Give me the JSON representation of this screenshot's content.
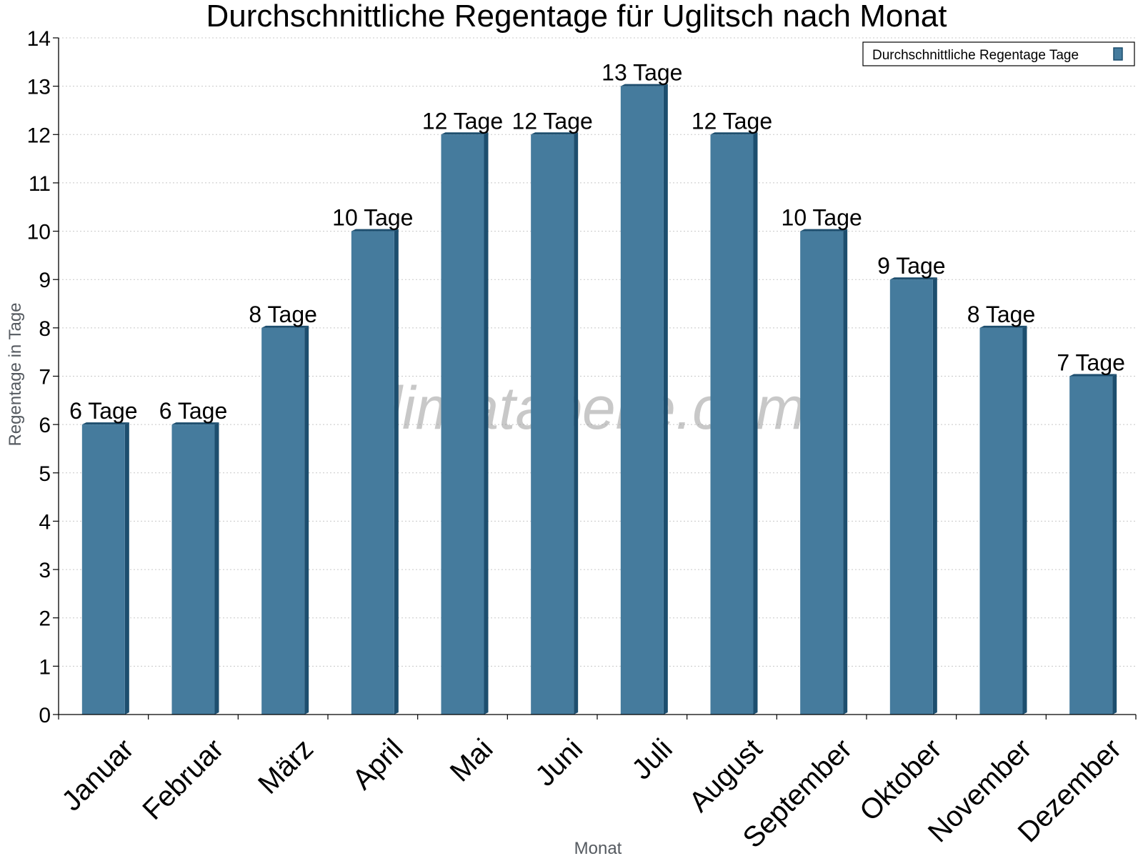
{
  "chart_data": {
    "type": "bar",
    "title": "Durchschnittliche Regentage für Uglitsch nach Monat",
    "xlabel": "Monat",
    "ylabel": "Regentage in Tage",
    "ylim": [
      0,
      14
    ],
    "yticks": [
      0,
      1,
      2,
      3,
      4,
      5,
      6,
      7,
      8,
      9,
      10,
      11,
      12,
      13,
      14
    ],
    "grid": true,
    "legend_position": "top-right",
    "categories": [
      "Januar",
      "Februar",
      "März",
      "April",
      "Mai",
      "Juni",
      "Juli",
      "August",
      "September",
      "Oktober",
      "November",
      "Dezember"
    ],
    "series": [
      {
        "name": "Durchschnittliche Regentage Tage",
        "values": [
          6,
          6,
          8,
          10,
          12,
          12,
          13,
          12,
          10,
          9,
          8,
          7
        ],
        "labels": [
          "6 Tage",
          "6 Tage",
          "8 Tage",
          "10 Tage",
          "12 Tage",
          "12 Tage",
          "13 Tage",
          "12 Tage",
          "10 Tage",
          "9 Tage",
          "8 Tage",
          "7 Tage"
        ]
      }
    ],
    "watermark": "klimatabelle.com",
    "colors": {
      "bar": "#457b9d",
      "bar_side": "#1d4e6e",
      "grid": "#c8c8c8"
    }
  }
}
